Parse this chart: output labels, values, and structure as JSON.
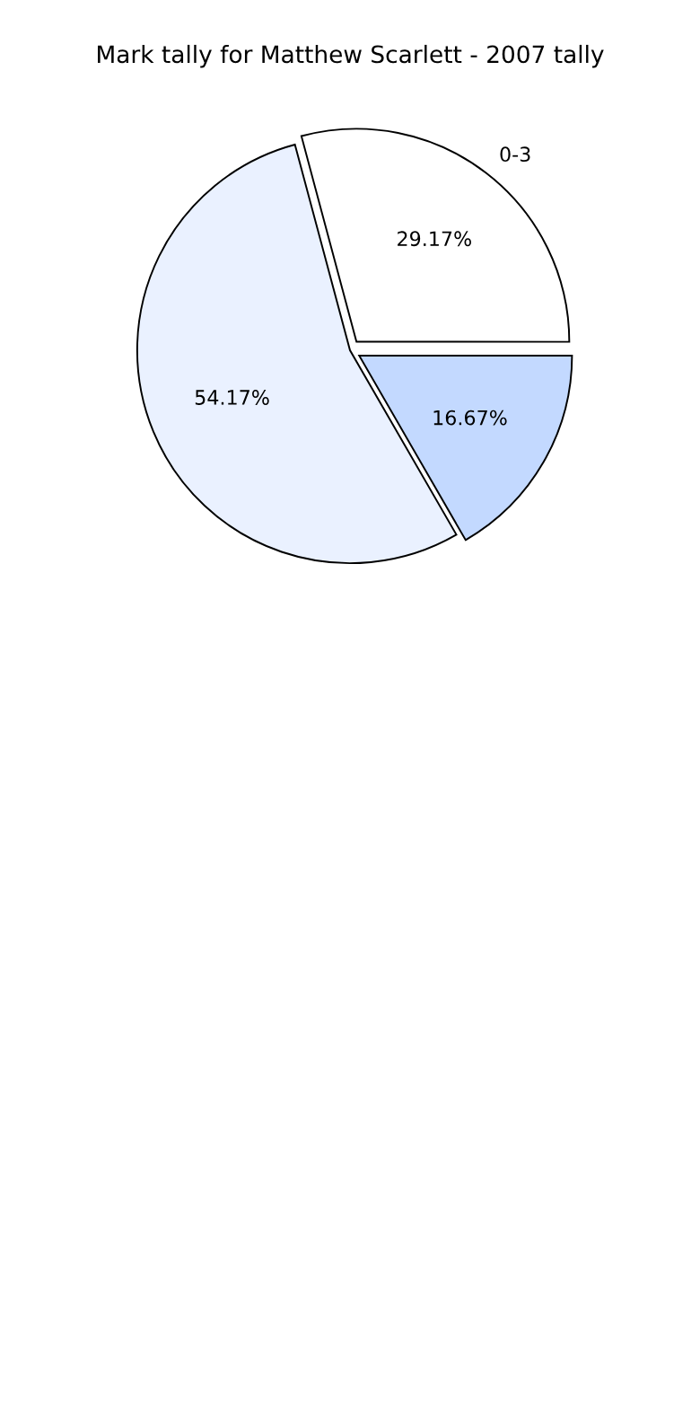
{
  "chart_data": {
    "type": "pie",
    "title": "Mark tally for Matthew Scarlett - 2007 tally",
    "categories": [
      "0-3",
      null,
      null
    ],
    "values": [
      29.17,
      16.67,
      54.17
    ],
    "colors": [
      "#ffffff",
      "#c3d9ff",
      "#eaf1ff"
    ],
    "value_labels": [
      "29.17%",
      "16.67%",
      "54.17%"
    ],
    "legend": false
  }
}
